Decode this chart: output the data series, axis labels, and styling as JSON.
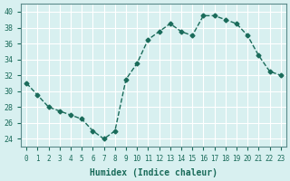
{
  "x": [
    0,
    1,
    2,
    3,
    4,
    5,
    6,
    7,
    8,
    9,
    10,
    11,
    12,
    13,
    14,
    15,
    16,
    17,
    18,
    19,
    20,
    21,
    22,
    23
  ],
  "y": [
    31,
    29.5,
    28,
    27.5,
    27,
    26.5,
    25,
    24,
    25,
    31.5,
    33.5,
    36.5,
    37.5,
    38.5,
    37.5,
    37,
    39.5,
    39.5,
    39,
    38.5,
    37,
    34.5,
    32.5,
    32
  ],
  "xlabel": "Humidex (Indice chaleur)",
  "ylabel": "",
  "ylim": [
    23,
    41
  ],
  "xlim": [
    -0.5,
    23.5
  ],
  "yticks": [
    24,
    26,
    28,
    30,
    32,
    34,
    36,
    38,
    40
  ],
  "xticks": [
    0,
    1,
    2,
    3,
    4,
    5,
    6,
    7,
    8,
    9,
    10,
    11,
    12,
    13,
    14,
    15,
    16,
    17,
    18,
    19,
    20,
    21,
    22,
    23
  ],
  "line_color": "#1a6b5a",
  "marker_color": "#1a6b5a",
  "bg_color": "#d8f0f0",
  "grid_color": "#ffffff",
  "label_color": "#1a6b5a",
  "tick_color": "#1a6b5a",
  "axis_color": "#5a8a8a"
}
